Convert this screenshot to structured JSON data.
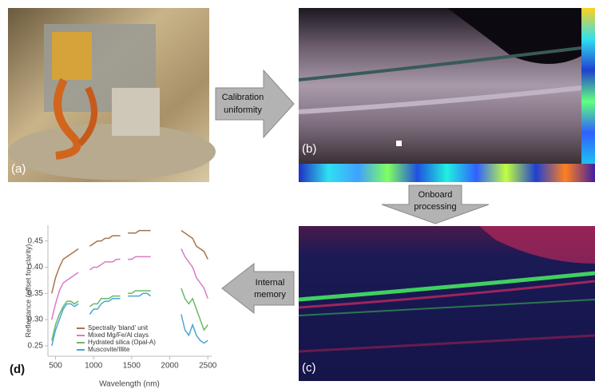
{
  "panels": [
    {
      "label": "(a)"
    },
    {
      "label": "(b)"
    },
    {
      "label": "(c)"
    },
    {
      "label": "(d)"
    }
  ],
  "arrows": [
    {
      "lines": [
        "Calibration",
        "uniformity"
      ]
    },
    {
      "lines": [
        "Onboard",
        "processing"
      ]
    },
    {
      "lines": [
        "Internal",
        "memory"
      ]
    }
  ],
  "chart_data": {
    "type": "line",
    "xlabel": "Wavelength (nm)",
    "ylabel": "Reflectance (offset for clarity)",
    "x": [
      450,
      500,
      550,
      600,
      650,
      700,
      750,
      800,
      850,
      950,
      1000,
      1050,
      1100,
      1150,
      1200,
      1250,
      1300,
      1350,
      1400,
      1450,
      1500,
      1550,
      1600,
      1650,
      1700,
      1750,
      1850,
      2150,
      2200,
      2250,
      2300,
      2350,
      2400,
      2450,
      2500
    ],
    "series": [
      {
        "name": "Spectrally 'bland' unit",
        "color": "#a8744a",
        "values": [
          0.35,
          0.38,
          0.4,
          0.415,
          0.42,
          0.425,
          0.43,
          0.435,
          null,
          0.44,
          0.445,
          0.45,
          0.45,
          0.455,
          0.455,
          0.46,
          0.46,
          0.46,
          null,
          0.465,
          0.465,
          0.465,
          0.47,
          0.47,
          0.47,
          0.47,
          null,
          0.47,
          0.465,
          0.46,
          0.455,
          0.44,
          0.435,
          0.43,
          0.415
        ]
      },
      {
        "name": "Mixed Mg/Fe/Al clays",
        "color": "#d97bc4",
        "values": [
          0.3,
          0.33,
          0.355,
          0.37,
          0.375,
          0.38,
          0.385,
          0.39,
          null,
          0.395,
          0.4,
          0.4,
          0.405,
          0.41,
          0.41,
          0.41,
          0.415,
          0.415,
          null,
          0.415,
          0.415,
          0.42,
          0.42,
          0.42,
          0.42,
          0.42,
          null,
          0.435,
          0.42,
          0.41,
          0.4,
          0.38,
          0.37,
          0.36,
          0.34
        ]
      },
      {
        "name": "Hydrated silica (Opal-A)",
        "color": "#6ab866",
        "values": [
          0.26,
          0.29,
          0.31,
          0.325,
          0.335,
          0.335,
          0.33,
          0.335,
          null,
          0.325,
          0.33,
          0.33,
          0.34,
          0.34,
          0.34,
          0.345,
          0.345,
          0.345,
          null,
          0.35,
          0.35,
          0.355,
          0.355,
          0.355,
          0.355,
          0.355,
          null,
          0.36,
          0.34,
          0.33,
          0.34,
          0.32,
          0.3,
          0.28,
          0.29
        ]
      },
      {
        "name": "Muscovite/Illite",
        "color": "#4aa6d6",
        "values": [
          0.25,
          0.28,
          0.3,
          0.32,
          0.33,
          0.33,
          0.325,
          0.33,
          null,
          0.31,
          0.32,
          0.32,
          0.33,
          0.335,
          0.335,
          0.34,
          0.34,
          0.34,
          null,
          0.345,
          0.345,
          0.345,
          0.345,
          0.35,
          0.35,
          0.345,
          null,
          0.31,
          0.28,
          0.27,
          0.29,
          0.27,
          0.26,
          0.255,
          0.26
        ]
      }
    ],
    "xlim": [
      400,
      2550
    ],
    "ylim": [
      0.23,
      0.48
    ],
    "xticks": [
      500,
      1000,
      1500,
      2000,
      2500
    ],
    "yticks": [
      0.25,
      {
        "value": 0.3,
        "label": "0.30"
      },
      0.35,
      {
        "value": 0.4,
        "label": "0.40"
      },
      0.45
    ]
  }
}
